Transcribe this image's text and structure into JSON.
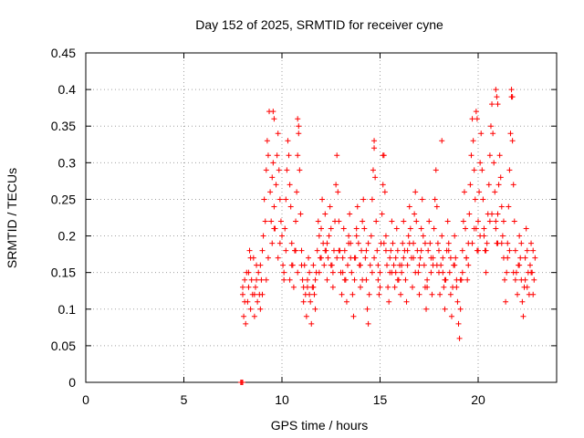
{
  "chart_data": {
    "type": "scatter",
    "title": "Day 152 of 2025, SRMTID for receiver cyne",
    "xlabel": "GPS time / hours",
    "ylabel": "SRMTID / TECUs",
    "xlim": [
      0,
      24
    ],
    "ylim": [
      0,
      0.45
    ],
    "xticks": [
      0,
      5,
      10,
      15,
      20
    ],
    "xtick_labels": [
      "0",
      "5",
      "10",
      "15",
      "20"
    ],
    "yticks": [
      0,
      0.05,
      0.1,
      0.15,
      0.2,
      0.25,
      0.3,
      0.35,
      0.4,
      0.45
    ],
    "ytick_labels": [
      "0",
      "0.05",
      "0.1",
      "0.15",
      "0.2",
      "0.25",
      "0.3",
      "0.35",
      "0.4",
      "0.45"
    ],
    "grid": true,
    "marker": "+",
    "color": "#ff0000",
    "series": [
      {
        "x": [
          7.9,
          7.95,
          8.0,
          8.0,
          8.05,
          8.1,
          8.15,
          8.2,
          8.25,
          8.3,
          8.35,
          8.4,
          8.45,
          8.5,
          8.55,
          8.6,
          8.65,
          8.7,
          8.75,
          8.8,
          8.85,
          8.9,
          8.95,
          9.0,
          9.05,
          9.1,
          9.15,
          9.2,
          9.25,
          9.3,
          9.35,
          9.4,
          9.45,
          9.5,
          9.55,
          9.6,
          9.65,
          9.7,
          9.75,
          9.8,
          9.85,
          9.9,
          9.95,
          10.0,
          10.05,
          10.1,
          10.15,
          10.2,
          10.25,
          10.3,
          10.35,
          10.4,
          10.45,
          10.5,
          10.55,
          10.6,
          10.65,
          10.7,
          10.75,
          10.8,
          10.85,
          10.9,
          10.95,
          11.0,
          11.05,
          11.1,
          11.15,
          11.2,
          11.25,
          11.3,
          11.35,
          11.4,
          11.45,
          11.5,
          11.55,
          11.6,
          11.65,
          11.7,
          11.75,
          11.8,
          11.85,
          11.9,
          11.95,
          12.0,
          12.05,
          12.1,
          12.15,
          12.2,
          12.25,
          12.3,
          12.35,
          12.4,
          12.45,
          12.5,
          12.55,
          12.6,
          12.65,
          12.7,
          12.75,
          12.8,
          12.85,
          12.9,
          12.95,
          13.0,
          13.05,
          13.1,
          13.15,
          13.2,
          13.25,
          13.3,
          13.35,
          13.4,
          13.45,
          13.5,
          13.55,
          13.6,
          13.65,
          13.7,
          13.75,
          13.8,
          13.85,
          13.9,
          13.95,
          14.0,
          14.05,
          14.1,
          14.15,
          14.2,
          14.25,
          14.3,
          14.35,
          14.4,
          14.45,
          14.5,
          14.55,
          14.6,
          14.65,
          14.7,
          14.75,
          14.8,
          14.85,
          14.9,
          14.95,
          15.0,
          15.05,
          15.1,
          15.15,
          15.2,
          15.25,
          15.3,
          15.35,
          15.4,
          15.45,
          15.5,
          15.55,
          15.6,
          15.65,
          15.7,
          15.75,
          15.8,
          15.85,
          15.9,
          15.95,
          16.0,
          16.05,
          16.1,
          16.15,
          16.2,
          16.25,
          16.3,
          16.35,
          16.4,
          16.45,
          16.5,
          16.55,
          16.6,
          16.65,
          16.7,
          16.75,
          16.8,
          16.85,
          16.9,
          16.95,
          17.0,
          17.05,
          17.1,
          17.15,
          17.2,
          17.25,
          17.3,
          17.35,
          17.4,
          17.45,
          17.5,
          17.55,
          17.6,
          17.65,
          17.7,
          17.75,
          17.8,
          17.85,
          17.9,
          17.95,
          18.0,
          18.05,
          18.1,
          18.15,
          18.2,
          18.25,
          18.3,
          18.35,
          18.4,
          18.45,
          18.5,
          18.55,
          18.6,
          18.65,
          18.7,
          18.75,
          18.8,
          18.85,
          18.9,
          18.95,
          19.0,
          19.05,
          19.1,
          19.15,
          19.2,
          19.25,
          19.3,
          19.35,
          19.4,
          19.45,
          19.5,
          19.55,
          19.6,
          19.65,
          19.7,
          19.75,
          19.8,
          19.85,
          19.9,
          19.95,
          20.0,
          20.05,
          20.1,
          20.15,
          20.2,
          20.25,
          20.3,
          20.35,
          20.4,
          20.45,
          20.5,
          20.55,
          20.6,
          20.65,
          20.7,
          20.75,
          20.8,
          20.85,
          20.9,
          20.95,
          21.0,
          21.05,
          21.1,
          21.15,
          21.2,
          21.25,
          21.3,
          21.35,
          21.4,
          21.45,
          21.5,
          21.55,
          21.6,
          21.65,
          21.7,
          21.75,
          21.8,
          21.85,
          21.9,
          21.95,
          22.0,
          22.05,
          22.1,
          22.15,
          22.2,
          22.25,
          22.3,
          22.35,
          22.4,
          22.45,
          22.5,
          22.55,
          22.6,
          22.65,
          22.7,
          22.75,
          22.8,
          22.85,
          22.9,
          8.0,
          8.3,
          8.6,
          8.9,
          9.2,
          9.5,
          9.8,
          10.1,
          10.4,
          10.7,
          11.0,
          11.3,
          11.6,
          11.9,
          12.2,
          12.5,
          12.8,
          13.1,
          13.4,
          13.7,
          14.0,
          14.3,
          14.6,
          14.9,
          15.2,
          15.5,
          15.8,
          16.1,
          16.4,
          16.7,
          17.0,
          17.3,
          17.6,
          17.9,
          18.2,
          18.5,
          18.8,
          19.1,
          19.4,
          19.7,
          20.0,
          20.3,
          20.6,
          20.9,
          21.2,
          21.5,
          21.8,
          22.1,
          22.4,
          22.7,
          8.1,
          8.4,
          8.7,
          9.0,
          9.3,
          9.6,
          9.9,
          10.2,
          10.5,
          10.8,
          11.1,
          11.4,
          11.7,
          12.0,
          12.3,
          12.6,
          12.9,
          13.2,
          13.5,
          13.8,
          14.1,
          14.4,
          14.7,
          15.0,
          15.3,
          15.6,
          15.9,
          16.2,
          16.5,
          16.8,
          17.1,
          17.4,
          17.7,
          18.0,
          18.3,
          18.6,
          18.9,
          19.2,
          19.5,
          19.8,
          20.1,
          20.4,
          20.7,
          21.0,
          21.3,
          21.6,
          21.9,
          22.2,
          22.5,
          22.8,
          9.55,
          9.6,
          10.8,
          10.85,
          14.7,
          15.15,
          18.15,
          19.9,
          19.95,
          20.9,
          20.95,
          21.0,
          21.7,
          21.75
        ],
        "y": [
          0.0,
          0.0,
          0.0,
          0.12,
          0.09,
          0.14,
          0.08,
          0.15,
          0.11,
          0.13,
          0.18,
          0.1,
          0.14,
          0.12,
          0.17,
          0.09,
          0.13,
          0.16,
          0.11,
          0.15,
          0.12,
          0.1,
          0.14,
          0.18,
          0.2,
          0.25,
          0.22,
          0.29,
          0.33,
          0.31,
          0.37,
          0.26,
          0.22,
          0.28,
          0.3,
          0.24,
          0.21,
          0.27,
          0.31,
          0.34,
          0.29,
          0.25,
          0.22,
          0.2,
          0.16,
          0.14,
          0.21,
          0.25,
          0.29,
          0.33,
          0.31,
          0.27,
          0.24,
          0.19,
          0.16,
          0.13,
          0.18,
          0.22,
          0.26,
          0.31,
          0.35,
          0.29,
          0.23,
          0.18,
          0.14,
          0.11,
          0.16,
          0.12,
          0.09,
          0.13,
          0.17,
          0.15,
          0.11,
          0.08,
          0.13,
          0.16,
          0.12,
          0.1,
          0.15,
          0.18,
          0.22,
          0.2,
          0.17,
          0.21,
          0.25,
          0.19,
          0.16,
          0.23,
          0.18,
          0.14,
          0.17,
          0.2,
          0.24,
          0.21,
          0.16,
          0.13,
          0.18,
          0.22,
          0.27,
          0.31,
          0.26,
          0.22,
          0.18,
          0.15,
          0.12,
          0.17,
          0.21,
          0.18,
          0.14,
          0.11,
          0.16,
          0.2,
          0.23,
          0.19,
          0.15,
          0.12,
          0.09,
          0.14,
          0.17,
          0.21,
          0.24,
          0.19,
          0.16,
          0.13,
          0.18,
          0.22,
          0.25,
          0.21,
          0.17,
          0.14,
          0.1,
          0.08,
          0.12,
          0.16,
          0.2,
          0.25,
          0.29,
          0.33,
          0.28,
          0.22,
          0.18,
          0.14,
          0.12,
          0.15,
          0.19,
          0.23,
          0.27,
          0.31,
          0.26,
          0.2,
          0.16,
          0.13,
          0.11,
          0.15,
          0.18,
          0.22,
          0.19,
          0.16,
          0.13,
          0.17,
          0.21,
          0.18,
          0.14,
          0.16,
          0.12,
          0.15,
          0.19,
          0.22,
          0.18,
          0.14,
          0.11,
          0.16,
          0.2,
          0.24,
          0.21,
          0.17,
          0.13,
          0.19,
          0.23,
          0.26,
          0.22,
          0.18,
          0.15,
          0.12,
          0.17,
          0.21,
          0.25,
          0.2,
          0.16,
          0.13,
          0.1,
          0.14,
          0.18,
          0.22,
          0.19,
          0.15,
          0.12,
          0.17,
          0.21,
          0.25,
          0.29,
          0.24,
          0.19,
          0.15,
          0.12,
          0.16,
          0.2,
          0.17,
          0.13,
          0.1,
          0.14,
          0.18,
          0.22,
          0.19,
          0.15,
          0.12,
          0.09,
          0.13,
          0.16,
          0.2,
          0.17,
          0.14,
          0.11,
          0.08,
          0.06,
          0.1,
          0.14,
          0.18,
          0.22,
          0.26,
          0.21,
          0.17,
          0.14,
          0.19,
          0.23,
          0.27,
          0.31,
          0.36,
          0.33,
          0.29,
          0.25,
          0.21,
          0.18,
          0.22,
          0.26,
          0.3,
          0.34,
          0.29,
          0.25,
          0.21,
          0.18,
          0.15,
          0.19,
          0.23,
          0.27,
          0.31,
          0.35,
          0.38,
          0.34,
          0.3,
          0.26,
          0.22,
          0.19,
          0.23,
          0.27,
          0.31,
          0.28,
          0.24,
          0.2,
          0.17,
          0.14,
          0.11,
          0.15,
          0.19,
          0.24,
          0.29,
          0.34,
          0.39,
          0.33,
          0.27,
          0.22,
          0.18,
          0.15,
          0.12,
          0.16,
          0.2,
          0.17,
          0.14,
          0.11,
          0.09,
          0.13,
          0.17,
          0.21,
          0.18,
          0.15,
          0.12,
          0.16,
          0.19,
          0.15,
          0.12,
          0.14,
          0.17,
          0.13,
          0.15,
          0.12,
          0.16,
          0.14,
          0.19,
          0.17,
          0.15,
          0.14,
          0.18,
          0.16,
          0.14,
          0.13,
          0.15,
          0.18,
          0.16,
          0.17,
          0.15,
          0.19,
          0.17,
          0.16,
          0.18,
          0.15,
          0.16,
          0.19,
          0.17,
          0.15,
          0.16,
          0.18,
          0.17,
          0.16,
          0.19,
          0.17,
          0.16,
          0.15,
          0.18,
          0.16,
          0.14,
          0.17,
          0.19,
          0.18,
          0.2,
          0.22,
          0.21,
          0.19,
          0.17,
          0.15,
          0.16,
          0.14,
          0.15,
          0.11,
          0.17,
          0.14,
          0.12,
          0.17,
          0.21,
          0.19,
          0.18,
          0.16,
          0.15,
          0.13,
          0.12,
          0.14,
          0.17,
          0.19,
          0.15,
          0.18,
          0.14,
          0.17,
          0.2,
          0.14,
          0.19,
          0.17,
          0.13,
          0.18,
          0.15,
          0.14,
          0.17,
          0.19,
          0.15,
          0.18,
          0.13,
          0.16,
          0.18,
          0.14,
          0.17,
          0.13,
          0.15,
          0.16,
          0.21,
          0.2,
          0.18,
          0.23,
          0.19,
          0.22,
          0.18,
          0.14,
          0.19,
          0.13,
          0.18,
          0.37,
          0.36,
          0.36,
          0.34,
          0.32,
          0.31,
          0.33,
          0.37,
          0.36,
          0.4,
          0.39,
          0.38,
          0.4,
          0.39
        ]
      }
    ]
  }
}
